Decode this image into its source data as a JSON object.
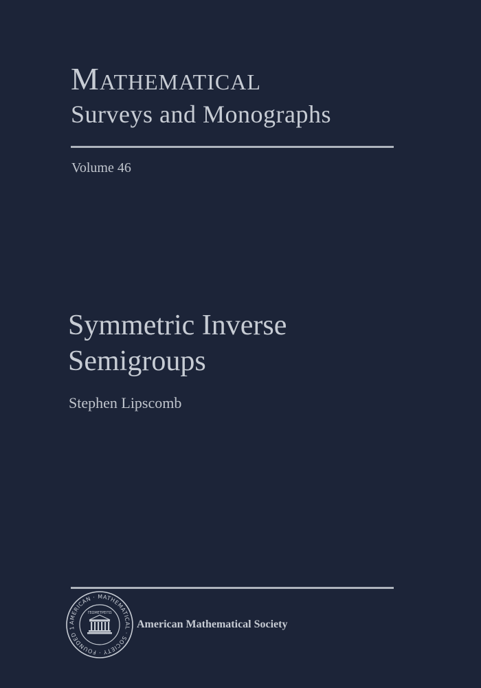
{
  "series": {
    "title": "Mathematical",
    "subtitle": "Surveys and Monographs"
  },
  "volume": "Volume 46",
  "book": {
    "title_line1": "Symmetric Inverse",
    "title_line2": "Semigroups"
  },
  "author": "Stephen Lipscomb",
  "publisher": {
    "name": "American Mathematical Society",
    "seal_text": "AMERICAN MATHEMATICAL SOCIETY",
    "seal_motto": "ΓΕΩΜΕΤΡΕΙΤΩ",
    "seal_founded": "FOUNDED 1888"
  },
  "colors": {
    "background": "#1c2438",
    "text": "#c7ccd4"
  }
}
